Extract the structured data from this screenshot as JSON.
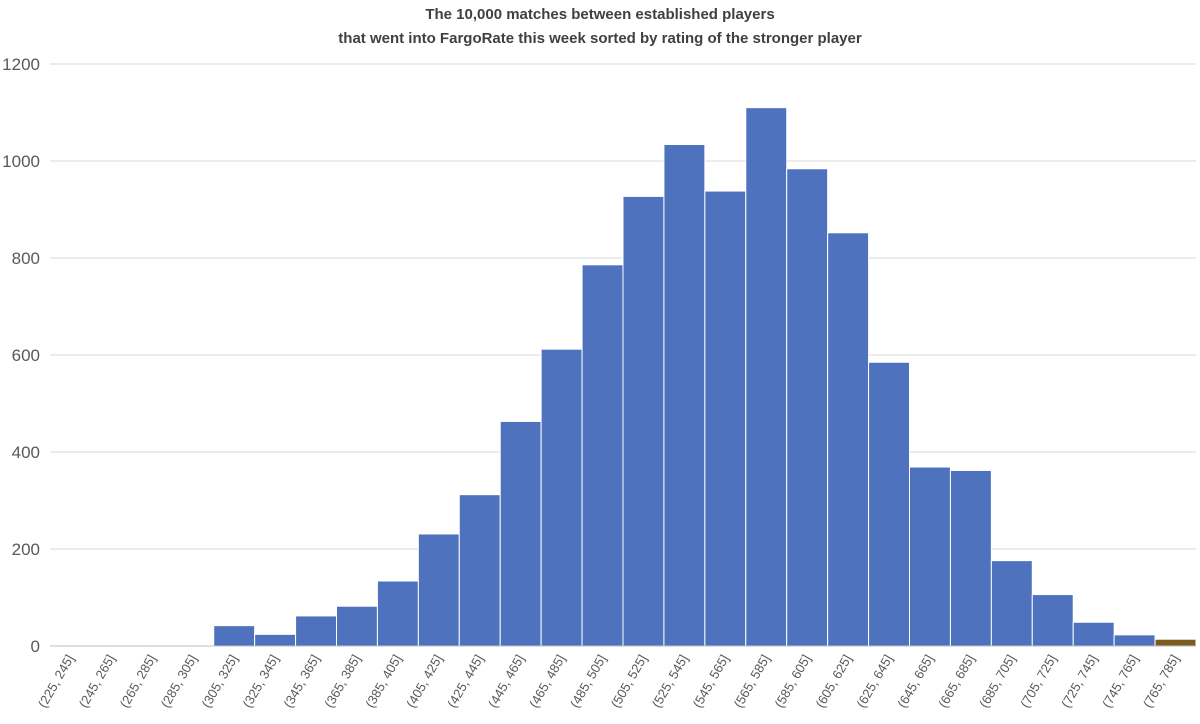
{
  "chart_data": {
    "type": "bar",
    "title": [
      "The 10,000 matches between established players",
      "that went into FargoRate this week sorted by rating of the stronger player"
    ],
    "xlabel": "",
    "ylabel": "",
    "ylim": [
      0,
      1200
    ],
    "yticks": [
      "0",
      "200",
      "400",
      "600",
      "800",
      "1000",
      "1200"
    ],
    "ytick_values": [
      0,
      200,
      400,
      600,
      800,
      1000,
      1200
    ],
    "grid": true,
    "categories": [
      "(225, 245]",
      "(245, 265]",
      "(265, 285]",
      "(285, 305]",
      "(305, 325]",
      "(325, 345]",
      "(345, 365]",
      "(365, 385]",
      "(385, 405]",
      "(405, 425]",
      "(425, 445]",
      "(445, 465]",
      "(465, 485]",
      "(485, 505]",
      "(505, 525]",
      "(525, 545]",
      "(545, 565]",
      "(565, 585]",
      "(585, 605]",
      "(605, 625]",
      "(625, 645]",
      "(645, 665]",
      "(665, 685]",
      "(685, 705]",
      "(705, 725]",
      "(725, 745]",
      "(745, 765]",
      "(765, 785]"
    ],
    "values": [
      0,
      0,
      0,
      0,
      42,
      24,
      62,
      82,
      134,
      231,
      312,
      463,
      612,
      786,
      927,
      1034,
      938,
      1110,
      984,
      852,
      585,
      369,
      362,
      176,
      106,
      49,
      23,
      14
    ],
    "bar_colors": [
      "#4f72be",
      "#4f72be",
      "#4f72be",
      "#4f72be",
      "#4f72be",
      "#4f72be",
      "#4f72be",
      "#4f72be",
      "#4f72be",
      "#4f72be",
      "#4f72be",
      "#4f72be",
      "#4f72be",
      "#4f72be",
      "#4f72be",
      "#4f72be",
      "#4f72be",
      "#4f72be",
      "#4f72be",
      "#4f72be",
      "#4f72be",
      "#4f72be",
      "#4f72be",
      "#4f72be",
      "#4f72be",
      "#4f72be",
      "#4f72be",
      "#7a5c1e"
    ]
  }
}
